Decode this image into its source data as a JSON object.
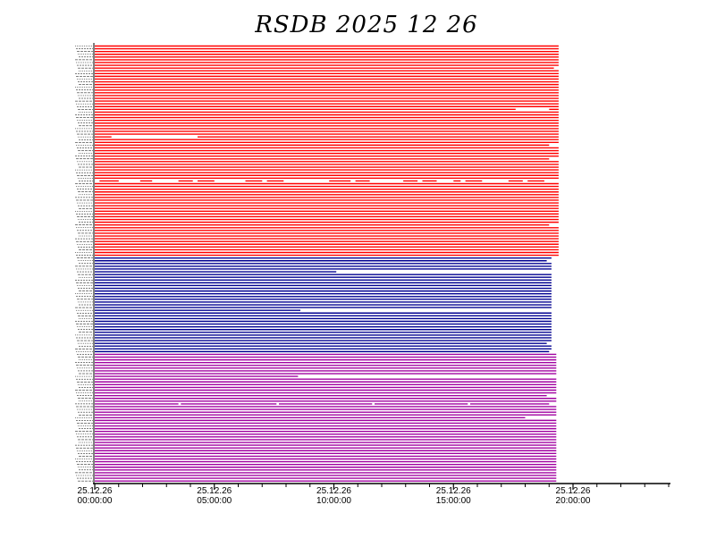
{
  "chart_data": {
    "type": "timeline",
    "title": "RSDB  2025  12  26",
    "x_unit": "hour of day",
    "xlim": [
      0,
      24
    ],
    "x_ticks": [
      {
        "value": 0,
        "date": "25.12.26",
        "time": "00:00:00"
      },
      {
        "value": 5,
        "date": "25.12.26",
        "time": "05:00:00"
      },
      {
        "value": 10,
        "date": "25.12.26",
        "time": "10:00:00"
      },
      {
        "value": 15,
        "date": "25.12.26",
        "time": "15:00:00"
      },
      {
        "value": 20,
        "date": "25.12.26",
        "time": "20:00:00"
      }
    ],
    "minor_tick_step": 1,
    "groups": [
      {
        "color": "#ff0000",
        "row_count": 77,
        "end": 19.4
      },
      {
        "color": "#000090",
        "row_count": 35,
        "end": 19.1
      },
      {
        "color": "#a000a0",
        "row_count": 47,
        "end": 19.3
      }
    ],
    "gaps": [
      {
        "row": 8,
        "start": 19.2,
        "end": 19.4
      },
      {
        "row": 23,
        "start": 17.6,
        "end": 19.0
      },
      {
        "row": 33,
        "start": 0.7,
        "end": 4.3
      },
      {
        "row": 36,
        "start": 19.0,
        "end": 19.4
      },
      {
        "row": 41,
        "start": 19.0,
        "end": 19.4
      },
      {
        "row": 49,
        "start": 0.0,
        "end": 0.2
      },
      {
        "row": 49,
        "start": 1.0,
        "end": 1.9
      },
      {
        "row": 49,
        "start": 2.4,
        "end": 3.5
      },
      {
        "row": 49,
        "start": 4.1,
        "end": 4.3
      },
      {
        "row": 49,
        "start": 5.0,
        "end": 6.3
      },
      {
        "row": 49,
        "start": 7.0,
        "end": 7.2
      },
      {
        "row": 49,
        "start": 7.9,
        "end": 9.8
      },
      {
        "row": 49,
        "start": 10.7,
        "end": 10.9
      },
      {
        "row": 49,
        "start": 11.5,
        "end": 12.9
      },
      {
        "row": 49,
        "start": 13.5,
        "end": 13.7
      },
      {
        "row": 49,
        "start": 14.3,
        "end": 15.0
      },
      {
        "row": 49,
        "start": 15.3,
        "end": 15.5
      },
      {
        "row": 49,
        "start": 16.2,
        "end": 17.3
      },
      {
        "row": 49,
        "start": 17.9,
        "end": 18.1
      },
      {
        "row": 49,
        "start": 18.8,
        "end": 19.4
      },
      {
        "row": 65,
        "start": 19.0,
        "end": 19.4
      },
      {
        "row": 78,
        "start": 18.9,
        "end": 19.1
      },
      {
        "row": 82,
        "start": 10.1,
        "end": 19.1
      },
      {
        "row": 96,
        "start": 8.6,
        "end": 19.1
      },
      {
        "row": 108,
        "start": 18.9,
        "end": 19.1
      },
      {
        "row": 111,
        "start": 19.0,
        "end": 19.3
      },
      {
        "row": 120,
        "start": 8.5,
        "end": 19.3
      },
      {
        "row": 127,
        "start": 18.9,
        "end": 19.3
      },
      {
        "row": 130,
        "start": 3.5,
        "end": 3.6
      },
      {
        "row": 130,
        "start": 7.6,
        "end": 7.7
      },
      {
        "row": 130,
        "start": 11.6,
        "end": 11.7
      },
      {
        "row": 130,
        "start": 15.6,
        "end": 15.7
      },
      {
        "row": 130,
        "start": 19.0,
        "end": 19.3
      },
      {
        "row": 135,
        "start": 18.0,
        "end": 19.3
      }
    ]
  }
}
